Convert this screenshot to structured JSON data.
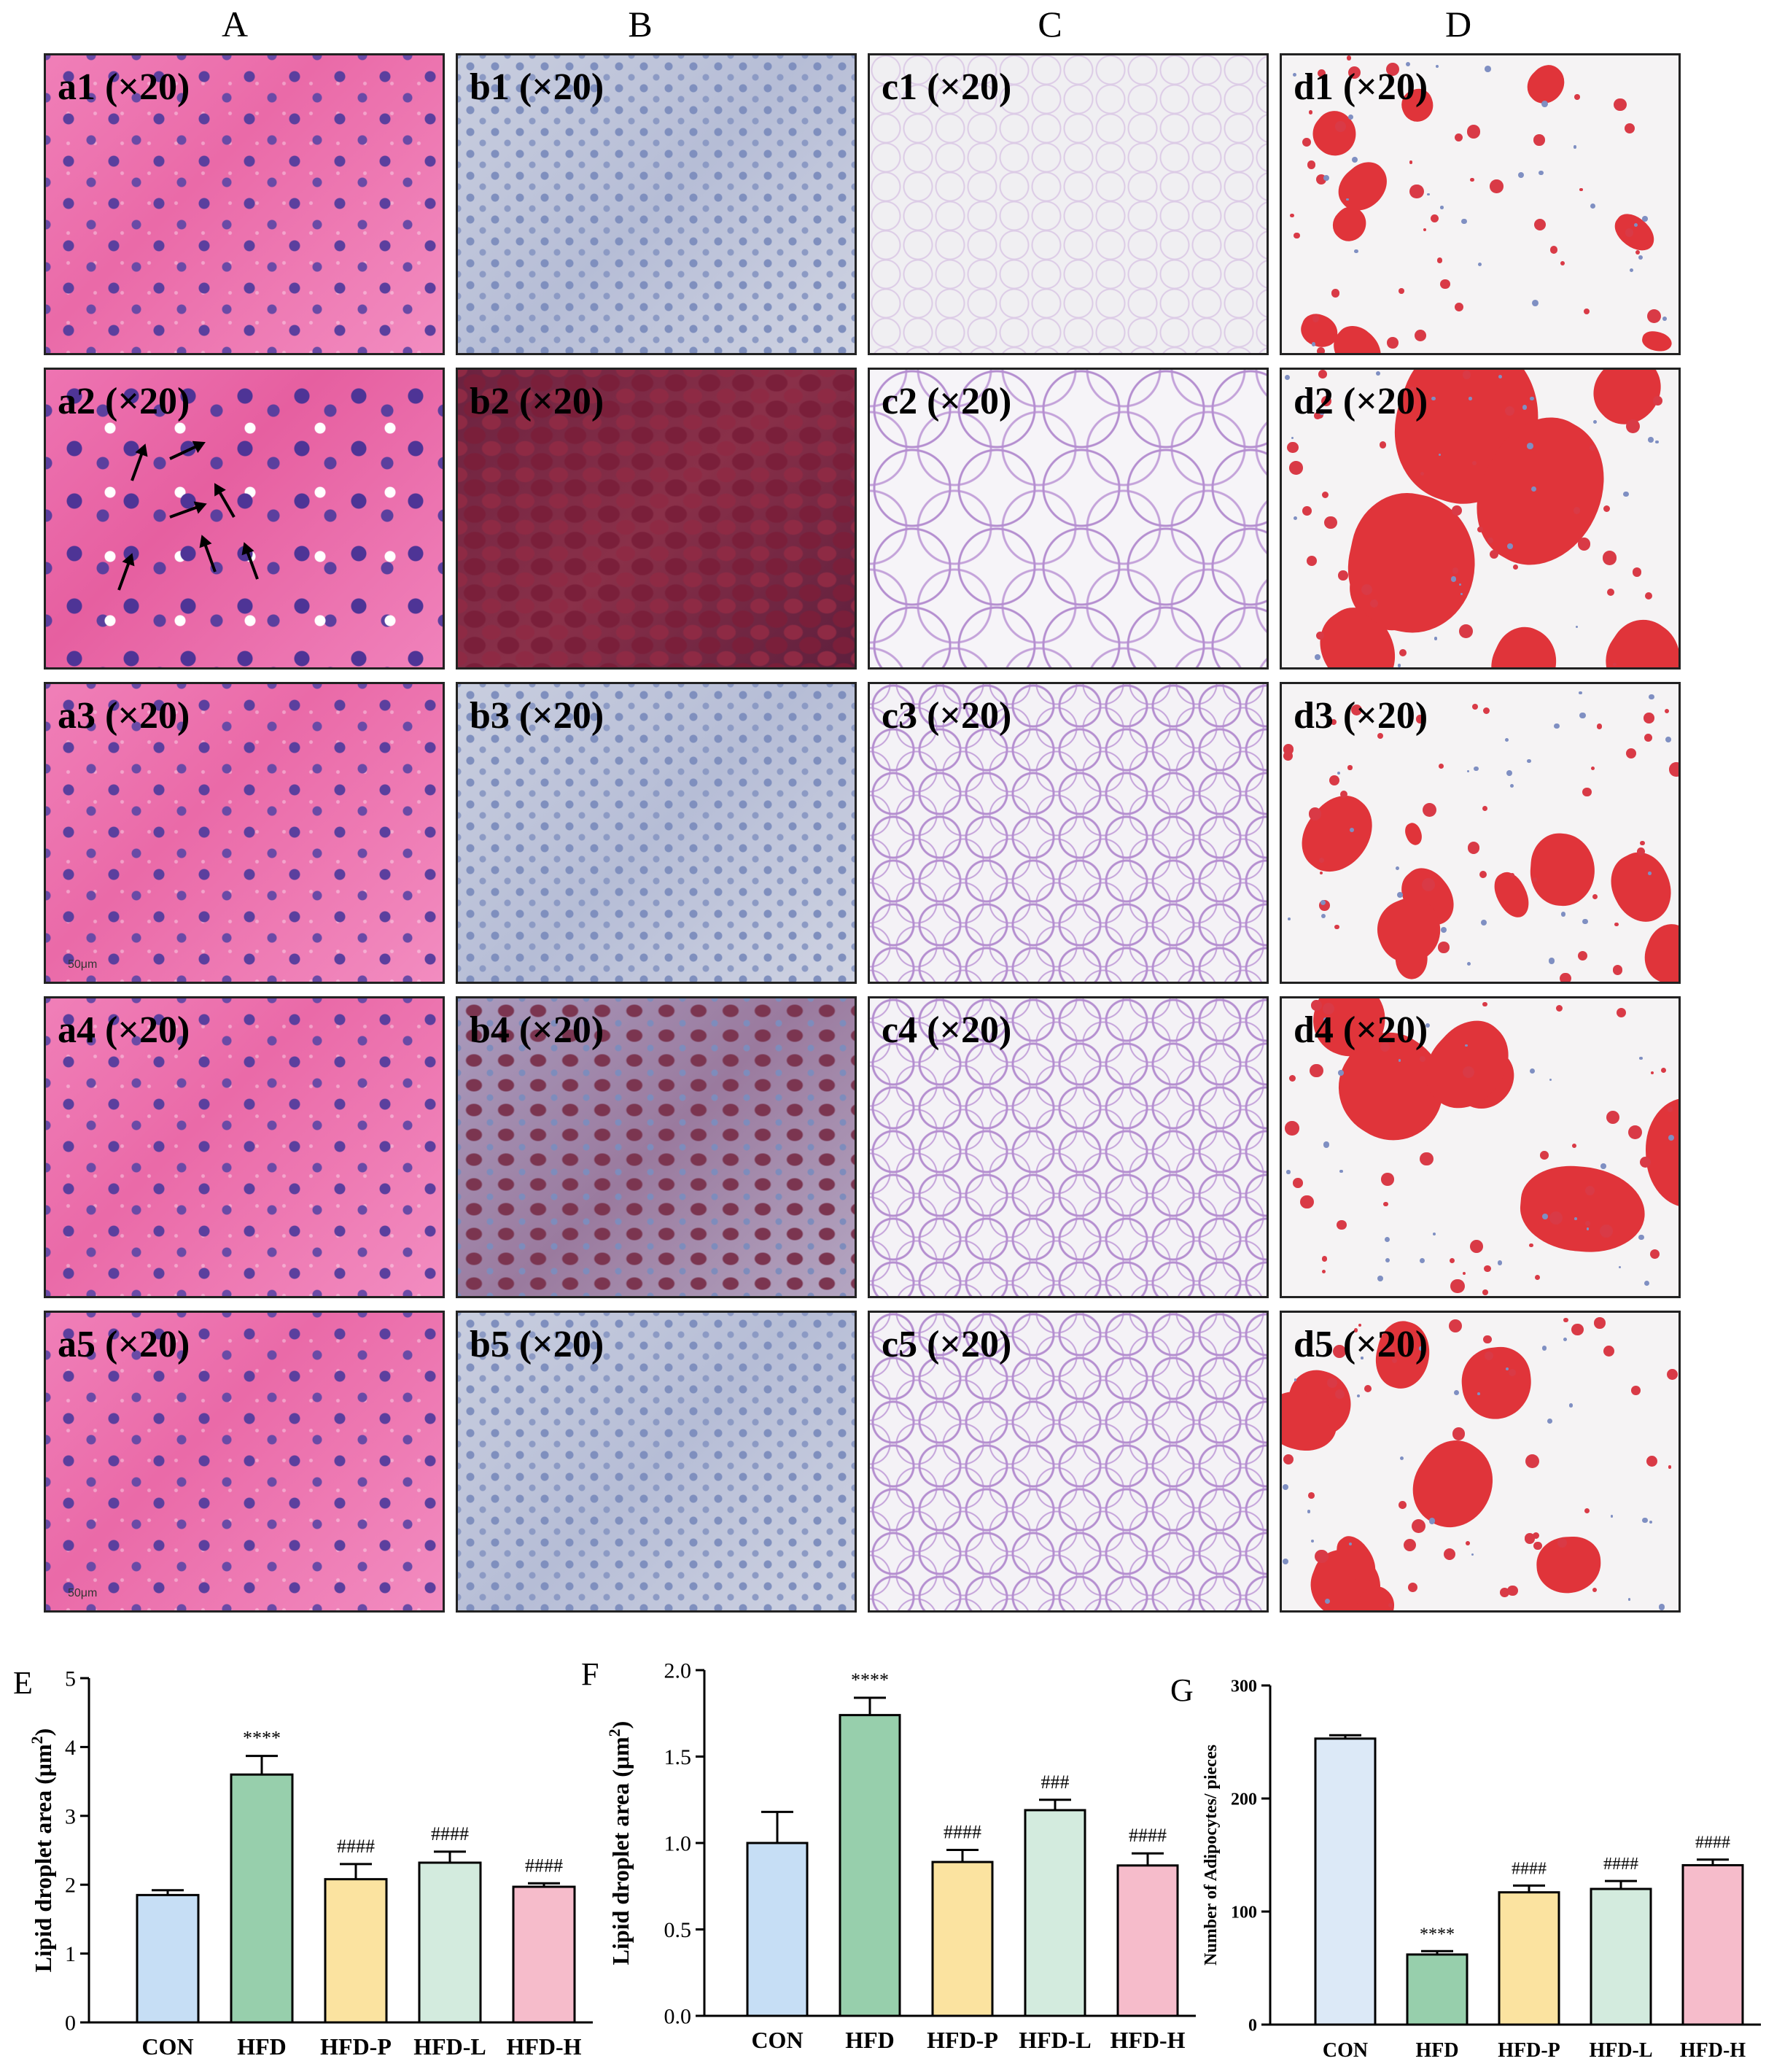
{
  "column_headers": [
    "A",
    "B",
    "C",
    "D"
  ],
  "panels": {
    "a": [
      "a1 (×20)",
      "a2 (×20)",
      "a3 (×20)",
      "a4 (×20)",
      "a5 (×20)"
    ],
    "b": [
      "b1 (×20)",
      "b2 (×20)",
      "b3 (×20)",
      "b4 (×20)",
      "b5 (×20)"
    ],
    "c": [
      "c1 (×20)",
      "c2 (×20)",
      "c3 (×20)",
      "c4 (×20)",
      "c5 (×20)"
    ],
    "d": [
      "d1 (×20)",
      "d2 (×20)",
      "d3 (×20)",
      "d4 (×20)",
      "d5 (×20)"
    ]
  },
  "scale_bar_text": "50μm",
  "colors": {
    "CON": "#c6def5",
    "HFD": "#97cfac",
    "HFD-P": "#fbe3a0",
    "HFD-L": "#d3ebde",
    "HFD-H": "#f6bccb",
    "CON_G": "#dce9f7"
  },
  "chart_data": [
    {
      "panel_letter": "E",
      "type": "bar",
      "categories": [
        "CON",
        "HFD",
        "HFD-P",
        "HFD-L",
        "HFD-H"
      ],
      "values": [
        1.85,
        3.6,
        2.08,
        2.32,
        1.97
      ],
      "errors": [
        0.07,
        0.27,
        0.22,
        0.16,
        0.05
      ],
      "significance": [
        "",
        "****",
        "####",
        "####",
        "####"
      ],
      "ylabel": "Lipid droplet area (μm²)",
      "ylabel_main": "Lipid droplet area (μm",
      "ylabel_sup": "2",
      "ylabel_close": ")",
      "ylim": [
        0,
        5
      ],
      "yticks": [
        "0",
        "1",
        "2",
        "3",
        "4",
        "5"
      ]
    },
    {
      "panel_letter": "F",
      "type": "bar",
      "categories": [
        "CON",
        "HFD",
        "HFD-P",
        "HFD-L",
        "HFD-H"
      ],
      "values": [
        1.0,
        1.74,
        0.89,
        1.19,
        0.87
      ],
      "errors": [
        0.18,
        0.1,
        0.07,
        0.06,
        0.07
      ],
      "significance": [
        "",
        "****",
        "####",
        "###",
        "####"
      ],
      "ylabel": "Lipid droplet area (μm²)",
      "ylabel_main": "Lipid droplet area (μm",
      "ylabel_sup": "2",
      "ylabel_close": ")",
      "ylim": [
        0,
        2.0
      ],
      "yticks": [
        "0.0",
        "0.5",
        "1.0",
        "1.5",
        "2.0"
      ]
    },
    {
      "panel_letter": "G",
      "type": "bar",
      "categories": [
        "CON",
        "HFD",
        "HFD-P",
        "HFD-L",
        "HFD-H"
      ],
      "values": [
        253,
        62,
        117,
        120,
        141
      ],
      "errors": [
        3,
        3,
        6,
        7,
        5
      ],
      "significance": [
        "",
        "****",
        "####",
        "####",
        "####"
      ],
      "ylabel": "Number of Adipocytes/ pieces",
      "ylim": [
        0,
        300
      ],
      "yticks": [
        "0",
        "100",
        "200",
        "300"
      ]
    }
  ]
}
